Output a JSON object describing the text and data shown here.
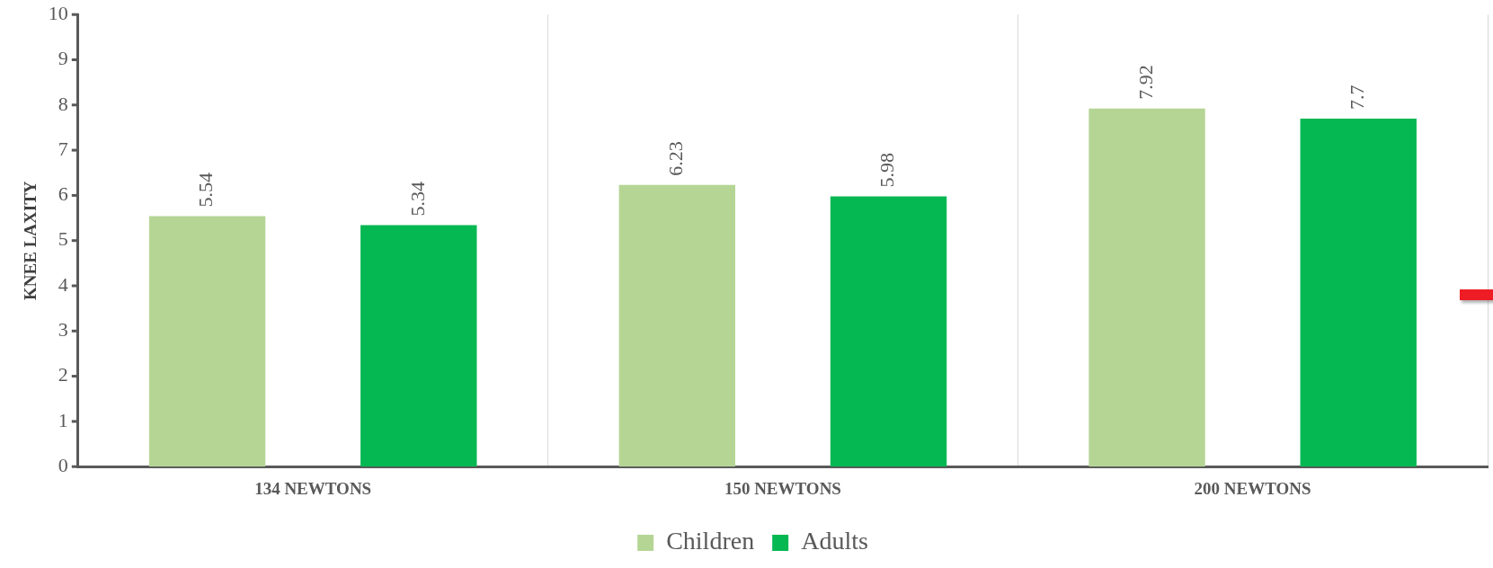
{
  "chart_data": {
    "type": "bar",
    "ylabel": "KNEE LAXITY",
    "categories": [
      "134 NEWTONS",
      "150 NEWTONS",
      "200 NEWTONS"
    ],
    "series": [
      {
        "name": "Children",
        "color": "#b5d595",
        "values": [
          5.54,
          6.23,
          7.92
        ]
      },
      {
        "name": "Adults",
        "color": "#06b852",
        "values": [
          5.34,
          5.98,
          7.7
        ]
      }
    ],
    "ylim": [
      0,
      10
    ],
    "yticks": [
      0,
      1,
      2,
      3,
      4,
      5,
      6,
      7,
      8,
      9,
      10
    ],
    "grid": "x",
    "legend": "bottom",
    "data_labels": true
  }
}
